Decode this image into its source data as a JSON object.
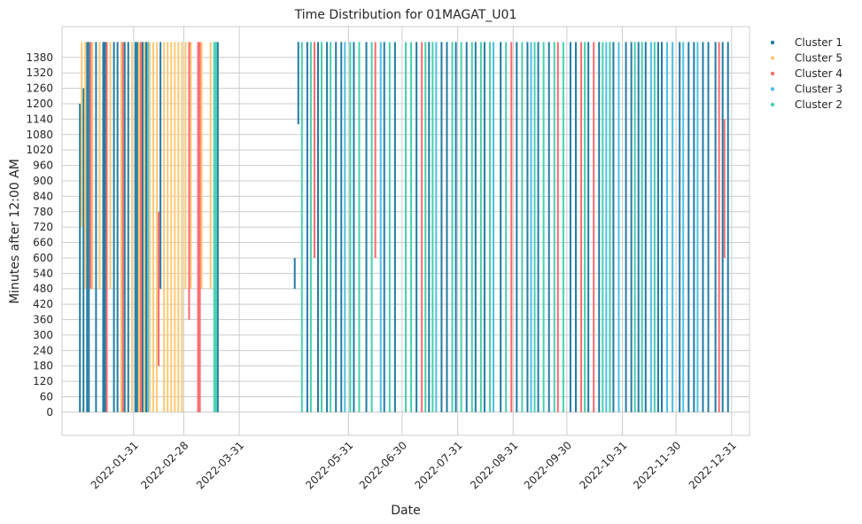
{
  "chart_data": {
    "type": "scatter",
    "title": "Time Distribution for 01MAGAT_U01",
    "xlabel": "Date",
    "ylabel": "Minutes after 12:00 AM",
    "xlim": [
      "2021-12-22",
      "2023-01-10"
    ],
    "ylim": [
      -90,
      1500
    ],
    "grid": true,
    "legend": {
      "placement": "outside-top-right",
      "entries": [
        "Cluster 1",
        "Cluster 5",
        "Cluster 4",
        "Cluster 3",
        "Cluster 2"
      ]
    },
    "x_ticks": [
      "2022-01-31",
      "2022-02-28",
      "2022-03-31",
      "2022-05-31",
      "2022-06-30",
      "2022-07-31",
      "2022-08-31",
      "2022-09-30",
      "2022-10-31",
      "2022-11-30",
      "2022-12-31"
    ],
    "y_ticks": [
      0,
      60,
      120,
      180,
      240,
      300,
      360,
      420,
      480,
      540,
      600,
      660,
      720,
      780,
      840,
      900,
      960,
      1020,
      1080,
      1140,
      1200,
      1260,
      1320,
      1380
    ],
    "colors": {
      "Cluster 1": "#217ca3",
      "Cluster 5": "#fdc975",
      "Cluster 4": "#fb6a6e",
      "Cluster 3": "#4dc0e6",
      "Cluster 2": "#47d0ad"
    },
    "series": [
      {
        "name": "Cluster 1",
        "segments": [
          {
            "date": "2022-01-01",
            "y0": 0,
            "y1": 1200
          },
          {
            "date": "2022-01-03",
            "y0": 0,
            "y1": 1260
          },
          {
            "date": "2022-01-05",
            "y0": 0,
            "y1": 1440
          },
          {
            "date": "2022-01-06",
            "y0": 0,
            "y1": 1440
          },
          {
            "date": "2022-01-10",
            "y0": 0,
            "y1": 1440
          },
          {
            "date": "2022-01-14",
            "y0": 0,
            "y1": 1440
          },
          {
            "date": "2022-01-15",
            "y0": 0,
            "y1": 1440
          },
          {
            "date": "2022-01-20",
            "y0": 0,
            "y1": 1440
          },
          {
            "date": "2022-01-22",
            "y0": 0,
            "y1": 1440
          },
          {
            "date": "2022-01-26",
            "y0": 0,
            "y1": 1440
          },
          {
            "date": "2022-01-28",
            "y0": 0,
            "y1": 1440
          },
          {
            "date": "2022-02-01",
            "y0": 0,
            "y1": 1440
          },
          {
            "date": "2022-02-02",
            "y0": 0,
            "y1": 1440
          },
          {
            "date": "2022-02-05",
            "y0": 0,
            "y1": 1440
          },
          {
            "date": "2022-02-07",
            "y0": 0,
            "y1": 1440
          },
          {
            "date": "2022-02-15",
            "y0": 480,
            "y1": 1440
          },
          {
            "date": "2022-03-19",
            "y0": 0,
            "y1": 1440
          },
          {
            "date": "2022-05-01",
            "y0": 480,
            "y1": 600
          },
          {
            "date": "2022-05-03",
            "y0": 1120,
            "y1": 1440
          },
          {
            "date": "2022-05-08",
            "y0": 0,
            "y1": 1440
          },
          {
            "date": "2022-05-14",
            "y0": 0,
            "y1": 1440
          },
          {
            "date": "2022-05-19",
            "y0": 0,
            "y1": 1440
          },
          {
            "date": "2022-05-24",
            "y0": 0,
            "y1": 1440
          },
          {
            "date": "2022-05-27",
            "y0": 0,
            "y1": 1440
          },
          {
            "date": "2022-06-03",
            "y0": 0,
            "y1": 1440
          },
          {
            "date": "2022-06-10",
            "y0": 0,
            "y1": 1440
          },
          {
            "date": "2022-06-20",
            "y0": 0,
            "y1": 1440
          },
          {
            "date": "2022-06-26",
            "y0": 0,
            "y1": 1440
          },
          {
            "date": "2022-07-08",
            "y0": 0,
            "y1": 1440
          },
          {
            "date": "2022-07-15",
            "y0": 0,
            "y1": 1440
          },
          {
            "date": "2022-07-22",
            "y0": 0,
            "y1": 1440
          },
          {
            "date": "2022-07-25",
            "y0": 0,
            "y1": 1440
          },
          {
            "date": "2022-07-30",
            "y0": 0,
            "y1": 1440
          },
          {
            "date": "2022-08-05",
            "y0": 0,
            "y1": 1440
          },
          {
            "date": "2022-08-10",
            "y0": 0,
            "y1": 1440
          },
          {
            "date": "2022-08-15",
            "y0": 0,
            "y1": 1440
          },
          {
            "date": "2022-08-24",
            "y0": 0,
            "y1": 1440
          },
          {
            "date": "2022-09-02",
            "y0": 0,
            "y1": 1440
          },
          {
            "date": "2022-09-08",
            "y0": 0,
            "y1": 1440
          },
          {
            "date": "2022-09-14",
            "y0": 0,
            "y1": 1440
          },
          {
            "date": "2022-09-20",
            "y0": 0,
            "y1": 1440
          },
          {
            "date": "2022-10-02",
            "y0": 0,
            "y1": 1440
          },
          {
            "date": "2022-10-05",
            "y0": 0,
            "y1": 1440
          },
          {
            "date": "2022-10-12",
            "y0": 0,
            "y1": 1440
          },
          {
            "date": "2022-10-18",
            "y0": 0,
            "y1": 1440
          },
          {
            "date": "2022-10-26",
            "y0": 0,
            "y1": 1440
          },
          {
            "date": "2022-11-02",
            "y0": 0,
            "y1": 1440
          },
          {
            "date": "2022-11-05",
            "y0": 0,
            "y1": 1440
          },
          {
            "date": "2022-11-09",
            "y0": 0,
            "y1": 1440
          },
          {
            "date": "2022-11-13",
            "y0": 0,
            "y1": 1440
          },
          {
            "date": "2022-11-20",
            "y0": 0,
            "y1": 1440
          },
          {
            "date": "2022-11-22",
            "y0": 0,
            "y1": 1440
          },
          {
            "date": "2022-12-02",
            "y0": 0,
            "y1": 1440
          },
          {
            "date": "2022-12-07",
            "y0": 0,
            "y1": 1440
          },
          {
            "date": "2022-12-10",
            "y0": 0,
            "y1": 1440
          },
          {
            "date": "2022-12-15",
            "y0": 0,
            "y1": 1440
          },
          {
            "date": "2022-12-18",
            "y0": 0,
            "y1": 1440
          },
          {
            "date": "2022-12-22",
            "y0": 0,
            "y1": 1440
          },
          {
            "date": "2022-12-26",
            "y0": 0,
            "y1": 1440
          },
          {
            "date": "2022-12-29",
            "y0": 0,
            "y1": 1440
          }
        ]
      },
      {
        "name": "Cluster 5",
        "segments": [
          {
            "date": "2022-01-02",
            "y0": 720,
            "y1": 1440
          },
          {
            "date": "2022-01-04",
            "y0": 480,
            "y1": 1440
          },
          {
            "date": "2022-01-08",
            "y0": 480,
            "y1": 1440
          },
          {
            "date": "2022-01-12",
            "y0": 480,
            "y1": 1440
          },
          {
            "date": "2022-01-18",
            "y0": 480,
            "y1": 1440
          },
          {
            "date": "2022-01-24",
            "y0": 0,
            "y1": 1440
          },
          {
            "date": "2022-01-30",
            "y0": 0,
            "y1": 1440
          },
          {
            "date": "2022-02-03",
            "y0": 0,
            "y1": 1440
          },
          {
            "date": "2022-02-06",
            "y0": 0,
            "y1": 1440
          },
          {
            "date": "2022-02-09",
            "y0": 0,
            "y1": 1440
          },
          {
            "date": "2022-02-11",
            "y0": 0,
            "y1": 1440
          },
          {
            "date": "2022-02-13",
            "y0": 0,
            "y1": 1440
          },
          {
            "date": "2022-02-17",
            "y0": 0,
            "y1": 1440
          },
          {
            "date": "2022-02-19",
            "y0": 0,
            "y1": 1440
          },
          {
            "date": "2022-02-21",
            "y0": 0,
            "y1": 1440
          },
          {
            "date": "2022-02-23",
            "y0": 0,
            "y1": 1440
          },
          {
            "date": "2022-02-25",
            "y0": 0,
            "y1": 1440
          },
          {
            "date": "2022-02-27",
            "y0": 0,
            "y1": 1440
          },
          {
            "date": "2022-03-01",
            "y0": 480,
            "y1": 1440
          },
          {
            "date": "2022-03-04",
            "y0": 480,
            "y1": 1440
          },
          {
            "date": "2022-03-10",
            "y0": 480,
            "y1": 1440
          },
          {
            "date": "2022-03-15",
            "y0": 480,
            "y1": 1440
          }
        ]
      },
      {
        "name": "Cluster 4",
        "segments": [
          {
            "date": "2022-01-07",
            "y0": 480,
            "y1": 1440
          },
          {
            "date": "2022-01-16",
            "y0": 0,
            "y1": 1440
          },
          {
            "date": "2022-01-25",
            "y0": 0,
            "y1": 1440
          },
          {
            "date": "2022-02-04",
            "y0": 0,
            "y1": 1440
          },
          {
            "date": "2022-02-14",
            "y0": 180,
            "y1": 780
          },
          {
            "date": "2022-03-03",
            "y0": 360,
            "y1": 1440
          },
          {
            "date": "2022-03-08",
            "y0": 0,
            "y1": 1440
          },
          {
            "date": "2022-03-09",
            "y0": 0,
            "y1": 1440
          },
          {
            "date": "2022-05-12",
            "y0": 600,
            "y1": 1440
          },
          {
            "date": "2022-06-15",
            "y0": 600,
            "y1": 1440
          },
          {
            "date": "2022-07-11",
            "y0": 0,
            "y1": 1440
          },
          {
            "date": "2022-08-30",
            "y0": 0,
            "y1": 1440
          },
          {
            "date": "2022-09-25",
            "y0": 0,
            "y1": 1440
          },
          {
            "date": "2022-10-08",
            "y0": 0,
            "y1": 1440
          },
          {
            "date": "2022-10-15",
            "y0": 0,
            "y1": 1440
          },
          {
            "date": "2022-12-24",
            "y0": 0,
            "y1": 1440
          },
          {
            "date": "2022-12-27",
            "y0": 600,
            "y1": 1140
          }
        ]
      },
      {
        "name": "Cluster 3",
        "segments": [
          {
            "date": "2022-02-08",
            "y0": 0,
            "y1": 1440
          },
          {
            "date": "2022-05-29",
            "y0": 0,
            "y1": 1440
          },
          {
            "date": "2022-06-18",
            "y0": 0,
            "y1": 1440
          },
          {
            "date": "2022-07-19",
            "y0": 0,
            "y1": 1440
          },
          {
            "date": "2022-08-20",
            "y0": 0,
            "y1": 1440
          },
          {
            "date": "2022-09-10",
            "y0": 0,
            "y1": 1440
          },
          {
            "date": "2022-10-22",
            "y0": 0,
            "y1": 1440
          },
          {
            "date": "2022-10-29",
            "y0": 0,
            "y1": 1440
          },
          {
            "date": "2022-11-16",
            "y0": 0,
            "y1": 1440
          },
          {
            "date": "2022-11-25",
            "y0": 0,
            "y1": 1440
          },
          {
            "date": "2022-11-28",
            "y0": 0,
            "y1": 1440
          },
          {
            "date": "2022-12-04",
            "y0": 0,
            "y1": 1440
          },
          {
            "date": "2022-12-12",
            "y0": 0,
            "y1": 1440
          }
        ]
      },
      {
        "name": "Cluster 2",
        "segments": [
          {
            "date": "2022-03-17",
            "y0": 0,
            "y1": 1440
          },
          {
            "date": "2022-03-18",
            "y0": 0,
            "y1": 1440
          },
          {
            "date": "2022-05-05",
            "y0": 0,
            "y1": 1440
          },
          {
            "date": "2022-05-10",
            "y0": 0,
            "y1": 1440
          },
          {
            "date": "2022-05-16",
            "y0": 0,
            "y1": 1440
          },
          {
            "date": "2022-05-21",
            "y0": 0,
            "y1": 1440
          },
          {
            "date": "2022-06-01",
            "y0": 0,
            "y1": 1440
          },
          {
            "date": "2022-06-06",
            "y0": 0,
            "y1": 1440
          },
          {
            "date": "2022-06-13",
            "y0": 0,
            "y1": 1440
          },
          {
            "date": "2022-06-23",
            "y0": 0,
            "y1": 1440
          },
          {
            "date": "2022-07-02",
            "y0": 0,
            "y1": 1440
          },
          {
            "date": "2022-07-05",
            "y0": 0,
            "y1": 1440
          },
          {
            "date": "2022-07-13",
            "y0": 0,
            "y1": 1440
          },
          {
            "date": "2022-07-17",
            "y0": 0,
            "y1": 1440
          },
          {
            "date": "2022-07-28",
            "y0": 0,
            "y1": 1440
          },
          {
            "date": "2022-08-02",
            "y0": 0,
            "y1": 1440
          },
          {
            "date": "2022-08-08",
            "y0": 0,
            "y1": 1440
          },
          {
            "date": "2022-08-13",
            "y0": 0,
            "y1": 1440
          },
          {
            "date": "2022-08-18",
            "y0": 0,
            "y1": 1440
          },
          {
            "date": "2022-08-27",
            "y0": 0,
            "y1": 1440
          },
          {
            "date": "2022-09-05",
            "y0": 0,
            "y1": 1440
          },
          {
            "date": "2022-09-12",
            "y0": 0,
            "y1": 1440
          },
          {
            "date": "2022-09-17",
            "y0": 0,
            "y1": 1440
          },
          {
            "date": "2022-09-23",
            "y0": 0,
            "y1": 1440
          },
          {
            "date": "2022-09-28",
            "y0": 0,
            "y1": 1440
          },
          {
            "date": "2022-10-10",
            "y0": 0,
            "y1": 1440
          },
          {
            "date": "2022-10-20",
            "y0": 0,
            "y1": 1440
          },
          {
            "date": "2022-10-24",
            "y0": 0,
            "y1": 1440
          },
          {
            "date": "2022-11-07",
            "y0": 0,
            "y1": 1440
          },
          {
            "date": "2022-11-11",
            "y0": 0,
            "y1": 1440
          },
          {
            "date": "2022-11-18",
            "y0": 0,
            "y1": 1440
          }
        ]
      }
    ]
  }
}
